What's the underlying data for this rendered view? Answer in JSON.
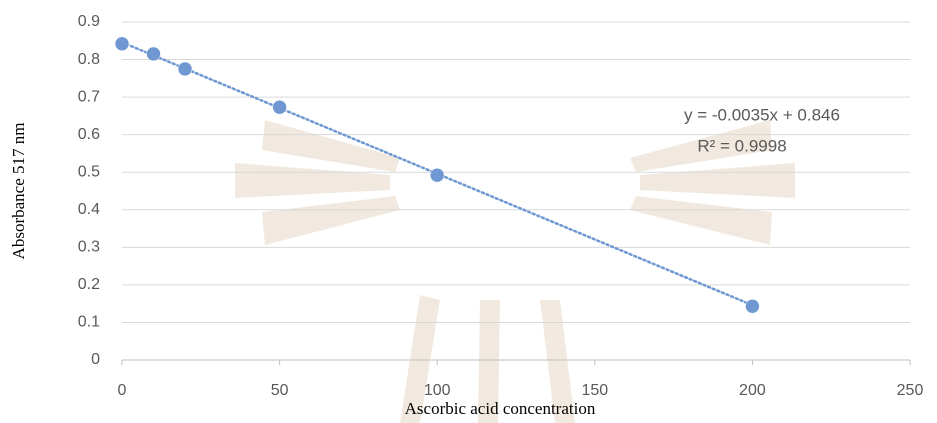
{
  "chart_data": {
    "type": "scatter",
    "x_label": "Ascorbic acid concentration",
    "y_label": "Absorbance 517 nm",
    "x": [
      0,
      10,
      20,
      50,
      100,
      200
    ],
    "values": [
      0.842,
      0.815,
      0.775,
      0.673,
      0.492,
      0.143
    ],
    "color": "#6f98d2",
    "xlim": [
      0,
      250
    ],
    "xticks": [
      0,
      50,
      100,
      150,
      200,
      250
    ],
    "ylim": [
      0,
      0.9
    ],
    "yticks": [
      0,
      0.1,
      0.2,
      0.3,
      0.4,
      0.5,
      0.6,
      0.7,
      0.8,
      0.9
    ],
    "grid": true,
    "trendline": {
      "slope": -0.0035,
      "intercept": 0.846,
      "equation": "y = -0.0035x + 0.846",
      "r2_label": "R² = 0.9998"
    }
  }
}
